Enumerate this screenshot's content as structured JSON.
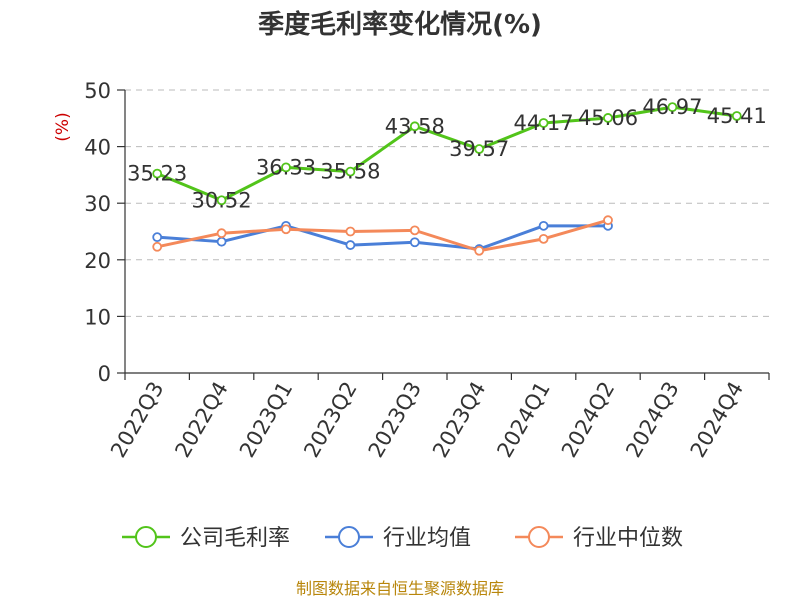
{
  "chart_data": {
    "type": "line",
    "title": "季度毛利率变化情况(%)",
    "ylabel": "(%)",
    "ylim": [
      0,
      50
    ],
    "yticks": [
      0,
      10,
      20,
      30,
      40,
      50
    ],
    "grid": true,
    "legend_position": "bottom",
    "categories": [
      "2022Q3",
      "2022Q4",
      "2023Q1",
      "2023Q2",
      "2023Q3",
      "2023Q4",
      "2024Q1",
      "2024Q2",
      "2024Q3",
      "2024Q4"
    ],
    "series": [
      {
        "name": "公司毛利率",
        "color": "#52c41a",
        "show_labels": true,
        "values": [
          35.23,
          30.52,
          36.33,
          35.58,
          43.58,
          39.57,
          44.17,
          45.06,
          46.97,
          45.41
        ],
        "labels": [
          "35.23",
          "30.52",
          "36.33",
          "35.58",
          "43.58",
          "39.57",
          "44.17",
          "45.06",
          "46.97",
          "45.41"
        ]
      },
      {
        "name": "行业均值",
        "color": "#4a7fd8",
        "show_labels": false,
        "values": [
          24.0,
          23.2,
          26.0,
          22.6,
          23.1,
          21.9,
          26.0,
          26.0,
          null,
          null
        ]
      },
      {
        "name": "行业中位数",
        "color": "#f4895a",
        "show_labels": false,
        "values": [
          22.3,
          24.7,
          25.4,
          25.0,
          25.2,
          21.6,
          23.7,
          27.0,
          null,
          null
        ]
      }
    ]
  },
  "source": "制图数据来自恒生聚源数据库"
}
